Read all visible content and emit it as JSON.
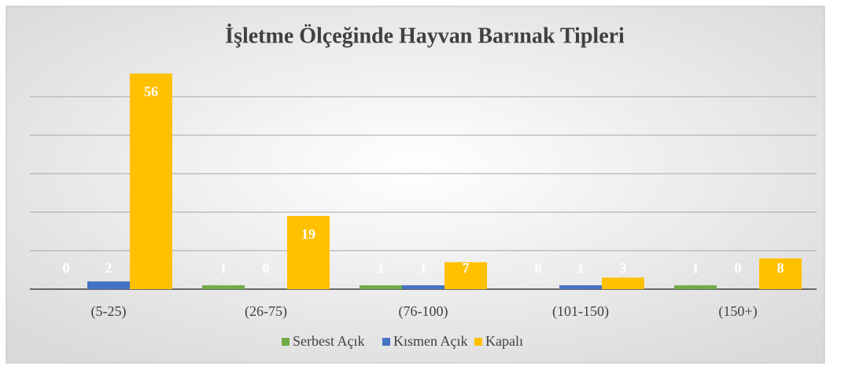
{
  "chart_data": {
    "type": "bar",
    "title": "İşletme Ölçeğinde Hayvan Barınak Tipleri",
    "categories": [
      "(5-25)",
      "(26-75)",
      "(76-100)",
      "(101-150)",
      "(150+)"
    ],
    "series": [
      {
        "name": "Serbest Açık",
        "color": "#70ad47",
        "values": [
          0,
          1,
          1,
          0,
          1
        ]
      },
      {
        "name": "Kısmen Açık",
        "color": "#4472c4",
        "values": [
          2,
          0,
          1,
          1,
          0
        ]
      },
      {
        "name": "Kapalı",
        "color": "#ffc000",
        "values": [
          56,
          19,
          7,
          3,
          8
        ]
      }
    ],
    "ylim": [
      0,
      60
    ],
    "yticks": [
      0,
      10,
      20,
      30,
      40,
      50
    ],
    "grid": true,
    "legend": "bottom"
  }
}
